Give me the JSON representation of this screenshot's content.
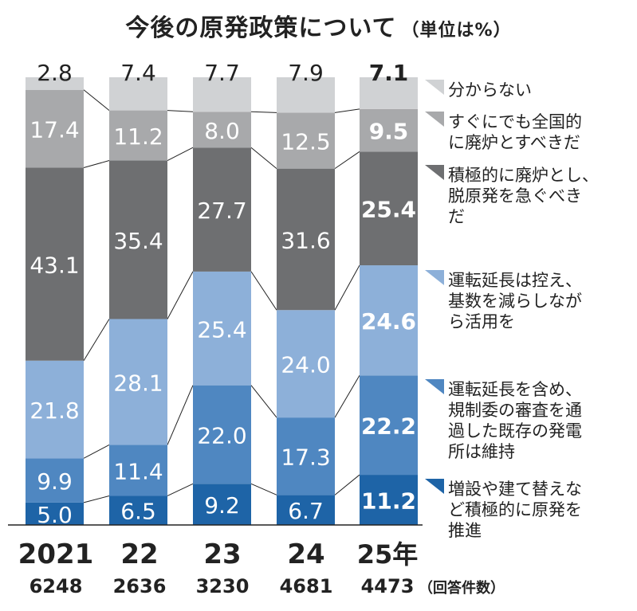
{
  "title": "今後の原発政策について",
  "unit": "（単位は%）",
  "colors": {
    "uncertain": "#d0d2d4",
    "abolish_immediately": "#a8a9ab",
    "abolish_actively": "#6e6f71",
    "extend_but_restrain": "#8db0d9",
    "maintain_existing": "#4f87c1",
    "promote": "#1e64a7"
  },
  "respondents_label": "（回答件数）",
  "chart_data": {
    "type": "bar",
    "stacked": true,
    "normalized": true,
    "ylim": [
      0,
      100
    ],
    "grid": false,
    "legend_placement": "right",
    "categories": [
      "2021",
      "22",
      "23",
      "24",
      "25年"
    ],
    "respondents": [
      "6248",
      "2636",
      "3230",
      "4681",
      "4473"
    ],
    "series": [
      {
        "key": "promote",
        "name": "増設や建て替えなど積極的に原発を推進",
        "values": [
          5.0,
          6.5,
          9.2,
          6.7,
          11.2
        ]
      },
      {
        "key": "maintain_existing",
        "name": "運転延長を含め、規制委の審査を通過した既存の発電所は維持",
        "values": [
          9.9,
          11.4,
          22.0,
          17.3,
          22.2
        ]
      },
      {
        "key": "extend_but_restrain",
        "name": "運転延長は控え、基数を減らしながら活用を",
        "values": [
          21.8,
          28.1,
          25.4,
          24.0,
          24.6
        ]
      },
      {
        "key": "abolish_actively",
        "name": "積極的に廃炉とし、脱原発を急ぐべきだ",
        "values": [
          43.1,
          35.4,
          27.7,
          31.6,
          25.4
        ]
      },
      {
        "key": "abolish_immediately",
        "name": "すぐにでも全国的に廃炉とすべきだ",
        "values": [
          17.4,
          11.2,
          8.0,
          12.5,
          9.5
        ]
      },
      {
        "key": "uncertain",
        "name": "分からない",
        "values": [
          2.8,
          7.4,
          7.7,
          7.9,
          7.1
        ]
      }
    ],
    "value_labels": [
      [
        "5.0",
        "6.5",
        "9.2",
        "6.7",
        "11.2"
      ],
      [
        "9.9",
        "11.4",
        "22.0",
        "17.3",
        "22.2"
      ],
      [
        "21.8",
        "28.1",
        "25.4",
        "24.0",
        "24.6"
      ],
      [
        "43.1",
        "35.4",
        "27.7",
        "31.6",
        "25.4"
      ],
      [
        "17.4",
        "11.2",
        "8.0",
        "12.5",
        "9.5"
      ],
      [
        "2.8",
        "7.4",
        "7.7",
        "7.9",
        "7.1"
      ]
    ],
    "legend": [
      {
        "key": "uncertain",
        "lines": [
          "分からない"
        ]
      },
      {
        "key": "abolish_immediately",
        "lines": [
          "すぐにでも全国的",
          "に廃炉とすべきだ"
        ]
      },
      {
        "key": "abolish_actively",
        "lines": [
          "積極的に廃炉とし、",
          "脱原発を急ぐべき",
          "だ"
        ]
      },
      {
        "key": "extend_but_restrain",
        "lines": [
          "運転延長は控え、",
          "基数を減らしなが",
          "ら活用を"
        ]
      },
      {
        "key": "maintain_existing",
        "lines": [
          "運転延長を含め、",
          "規制委の審査を通",
          "過した既存の発電",
          "所は維持"
        ]
      },
      {
        "key": "promote",
        "lines": [
          "増設や建て替えな",
          "ど積極的に原発を",
          "推進"
        ]
      }
    ]
  }
}
